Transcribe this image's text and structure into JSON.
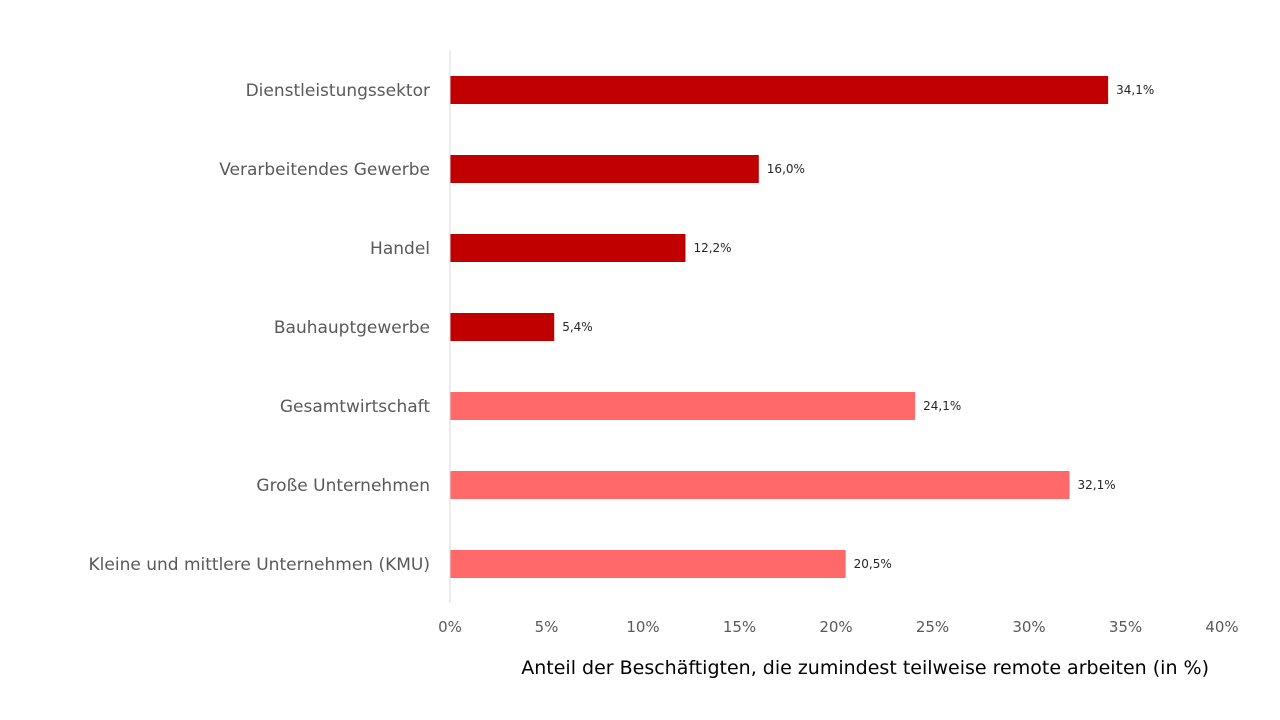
{
  "chart_data": {
    "type": "bar",
    "orientation": "horizontal",
    "title": "",
    "xlabel": "Anteil der Beschäftigten, die zumindest teilweise remote arbeiten (in %)",
    "ylabel": "",
    "xlim": [
      0,
      40
    ],
    "grid": false,
    "legend": "none",
    "x_ticks": [
      0,
      5,
      10,
      15,
      20,
      25,
      30,
      35,
      40
    ],
    "x_tick_labels": [
      "0%",
      "5%",
      "10%",
      "15%",
      "20%",
      "25%",
      "30%",
      "35%",
      "40%"
    ],
    "bars": [
      {
        "category": "Dienstleistungssektor",
        "value": 34.1,
        "label": "34,1%",
        "group": "sector",
        "color": "#c00000"
      },
      {
        "category": "Verarbeitendes Gewerbe",
        "value": 16.0,
        "label": "16,0%",
        "group": "sector",
        "color": "#c00000"
      },
      {
        "category": "Handel",
        "value": 12.2,
        "label": "12,2%",
        "group": "sector",
        "color": "#c00000"
      },
      {
        "category": "Bauhauptgewerbe",
        "value": 5.4,
        "label": "5,4%",
        "group": "sector",
        "color": "#c00000"
      },
      {
        "category": "Gesamtwirtschaft",
        "value": 24.1,
        "label": "24,1%",
        "group": "size",
        "color": "#ff6969"
      },
      {
        "category": "Große Unternehmen",
        "value": 32.1,
        "label": "32,1%",
        "group": "size",
        "color": "#ff6969"
      },
      {
        "category": "Kleine und mittlere Unternehmen (KMU)",
        "value": 20.5,
        "label": "20,5%",
        "group": "size",
        "color": "#ff6969"
      }
    ]
  }
}
